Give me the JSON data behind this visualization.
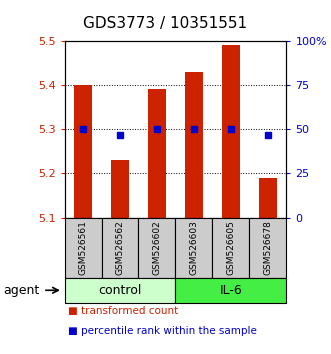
{
  "title": "GDS3773 / 10351551",
  "samples": [
    "GSM526561",
    "GSM526562",
    "GSM526602",
    "GSM526603",
    "GSM526605",
    "GSM526678"
  ],
  "bar_values": [
    5.4,
    5.23,
    5.39,
    5.43,
    5.49,
    5.19
  ],
  "bar_base": 5.1,
  "blue_values": [
    50,
    47,
    50,
    50,
    50,
    47
  ],
  "ylim_left": [
    5.1,
    5.5
  ],
  "ylim_right": [
    0,
    100
  ],
  "yticks_left": [
    5.1,
    5.2,
    5.3,
    5.4,
    5.5
  ],
  "yticks_right": [
    0,
    25,
    50,
    75,
    100
  ],
  "ytick_labels_right": [
    "0",
    "25",
    "50",
    "75",
    "100%"
  ],
  "bar_color": "#cc2200",
  "blue_color": "#0000cc",
  "group_labels": [
    "control",
    "IL-6"
  ],
  "group_colors": [
    "#ccffcc",
    "#44ee44"
  ],
  "group_ranges": [
    [
      0,
      3
    ],
    [
      3,
      6
    ]
  ],
  "agent_label": "agent",
  "legend_items": [
    "transformed count",
    "percentile rank within the sample"
  ],
  "legend_colors": [
    "#cc2200",
    "#0000cc"
  ],
  "bar_width": 0.5,
  "background_sample": "#cccccc",
  "title_fontsize": 11
}
